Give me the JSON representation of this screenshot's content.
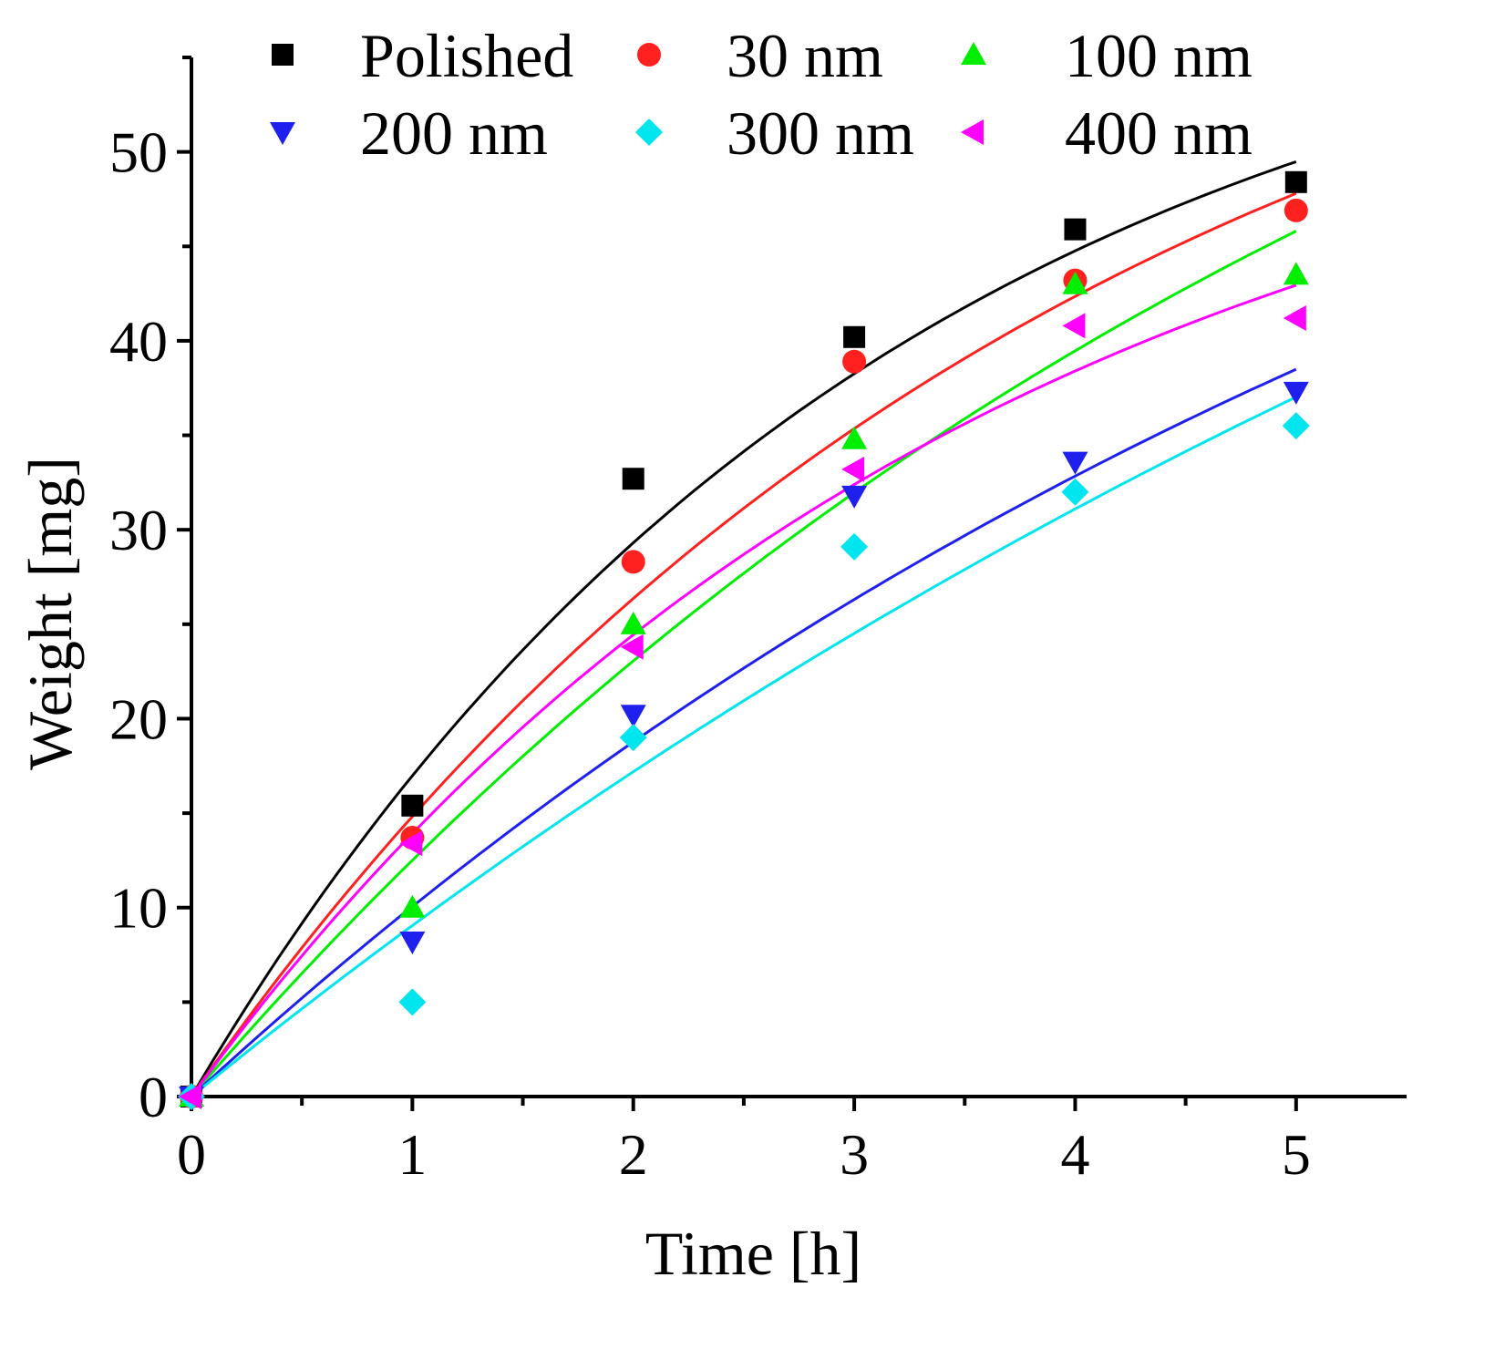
{
  "chart_data": {
    "type": "scatter",
    "title": "",
    "xlabel": "Time [h]",
    "ylabel": "Weight [mg]",
    "xlim": [
      0,
      5.5
    ],
    "ylim": [
      0,
      55
    ],
    "x_ticks": [
      0,
      1,
      2,
      3,
      4,
      5
    ],
    "x_tick_labels": [
      "0",
      "1",
      "2",
      "3",
      "4",
      "5"
    ],
    "y_ticks": [
      0,
      10,
      20,
      30,
      40,
      50
    ],
    "y_tick_labels": [
      "0",
      "10",
      "20",
      "30",
      "40",
      "50"
    ],
    "grid": false,
    "legend_position": "top",
    "x": [
      0,
      1,
      2,
      3,
      4,
      5
    ],
    "series": [
      {
        "name": "Polished",
        "marker": "square",
        "color": "#000000",
        "values": [
          0,
          15.4,
          32.7,
          40.2,
          45.9,
          48.4
        ],
        "fit": {
          "a": 62.0,
          "k": 0.32
        }
      },
      {
        "name": "30 nm",
        "marker": "circle",
        "color": "#ff2020",
        "values": [
          0,
          13.7,
          28.3,
          38.9,
          43.2,
          46.9
        ],
        "fit": {
          "a": 67.0,
          "k": 0.25
        }
      },
      {
        "name": "100 nm",
        "marker": "triangle-up",
        "color": "#00ee00",
        "values": [
          0,
          10.0,
          25.0,
          34.8,
          43.0,
          43.5
        ],
        "fit": {
          "a": 80.0,
          "k": 0.17
        }
      },
      {
        "name": "200 nm",
        "marker": "triangle-down",
        "color": "#2020ee",
        "values": [
          0,
          8.2,
          20.2,
          31.8,
          33.6,
          37.3
        ],
        "fit": {
          "a": 75.0,
          "k": 0.144
        }
      },
      {
        "name": "300 nm",
        "marker": "diamond",
        "color": "#00e5ee",
        "values": [
          0,
          5.0,
          19.0,
          29.1,
          32.0,
          35.5
        ],
        "fit": {
          "a": 90.0,
          "k": 0.106
        }
      },
      {
        "name": "400 nm",
        "marker": "triangle-left",
        "color": "#ff00ff",
        "values": [
          0,
          13.4,
          23.8,
          33.2,
          40.8,
          41.2
        ],
        "fit": {
          "a": 57.0,
          "k": 0.28
        }
      }
    ]
  }
}
